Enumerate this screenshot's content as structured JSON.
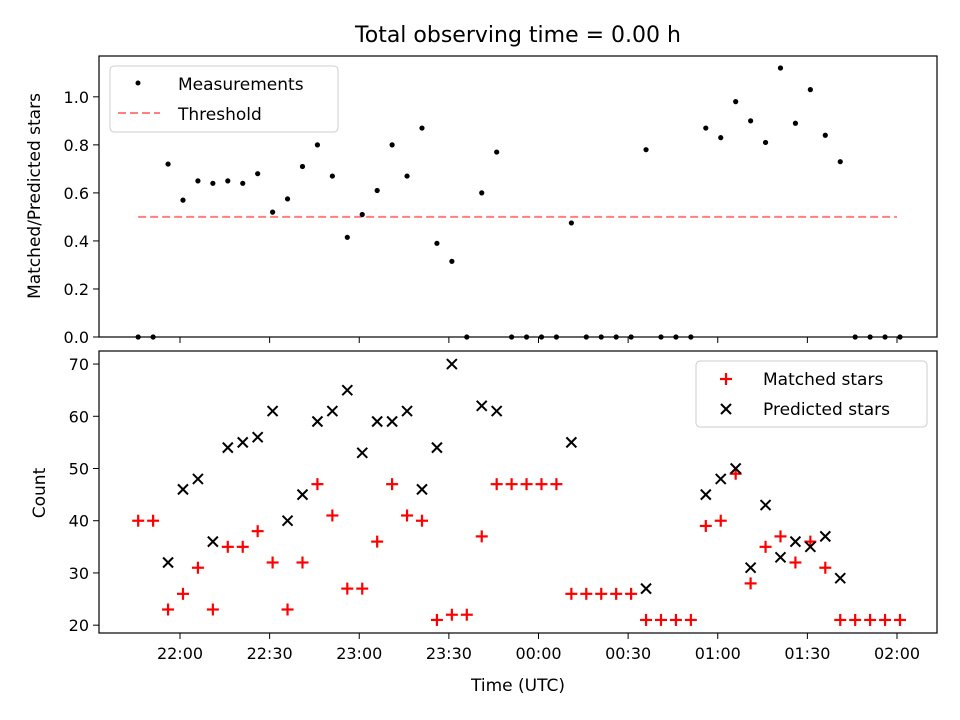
{
  "figure": {
    "title": "Total observing time = 0.00 h",
    "xlabel": "Time (UTC)",
    "x_ticks": [
      "22:00",
      "22:30",
      "23:00",
      "23:30",
      "00:00",
      "00:30",
      "01:00",
      "01:30",
      "02:00"
    ],
    "x_range_minutes": [
      -25,
      43
    ],
    "colors": {
      "measurements": "#000000",
      "threshold": "#ff7f7f",
      "matched": "#ff0000",
      "predicted": "#000000"
    }
  },
  "chart_data": [
    {
      "type": "scatter",
      "ylabel": "Matched/Predicted stars",
      "ylim": [
        0,
        1.17
      ],
      "y_ticks": [
        "0.0",
        "0.2",
        "0.4",
        "0.6",
        "0.8",
        "1.0"
      ],
      "legend_position": "top-left",
      "x": [
        "21:46",
        "21:51",
        "21:56",
        "22:01",
        "22:06",
        "22:11",
        "22:16",
        "22:21",
        "22:26",
        "22:31",
        "22:36",
        "22:41",
        "22:46",
        "22:51",
        "22:56",
        "23:01",
        "23:06",
        "23:11",
        "23:16",
        "23:21",
        "23:26",
        "23:31",
        "23:36",
        "23:41",
        "23:46",
        "23:51",
        "23:56",
        "00:01",
        "00:06",
        "00:11",
        "00:16",
        "00:21",
        "00:26",
        "00:31",
        "00:36",
        "00:41",
        "00:46",
        "00:51",
        "00:56",
        "01:01",
        "01:06",
        "01:11",
        "01:16",
        "01:21",
        "01:26",
        "01:31",
        "01:36",
        "01:41",
        "01:46",
        "01:51",
        "01:56",
        "02:01"
      ],
      "series": [
        {
          "name": "Measurements",
          "values": [
            0,
            0,
            0.72,
            0.57,
            0.65,
            0.64,
            0.65,
            0.64,
            0.68,
            0.52,
            0.575,
            0.71,
            0.8,
            0.67,
            0.415,
            0.51,
            0.61,
            0.8,
            0.67,
            0.87,
            0.39,
            0.315,
            0,
            0.6,
            0.77,
            0,
            0,
            0,
            0,
            0.475,
            0,
            0,
            0,
            0,
            0.78,
            0,
            0,
            0,
            0.87,
            0.83,
            0.98,
            0.9,
            0.81,
            1.12,
            0.89,
            1.03,
            0.84,
            0.73,
            0,
            0,
            0,
            0
          ]
        },
        {
          "name": "Threshold",
          "type": "line",
          "x": [
            "21:46",
            "02:00"
          ],
          "values": [
            0.5,
            0.5
          ]
        }
      ]
    },
    {
      "type": "scatter",
      "ylabel": "Count",
      "ylim": [
        18.5,
        72.5
      ],
      "y_ticks": [
        "20",
        "30",
        "40",
        "50",
        "60",
        "70"
      ],
      "legend_position": "top-right",
      "x": [
        "21:46",
        "21:51",
        "21:56",
        "22:01",
        "22:06",
        "22:11",
        "22:16",
        "22:21",
        "22:26",
        "22:31",
        "22:36",
        "22:41",
        "22:46",
        "22:51",
        "22:56",
        "23:01",
        "23:06",
        "23:11",
        "23:16",
        "23:21",
        "23:26",
        "23:31",
        "23:36",
        "23:41",
        "23:46",
        "23:51",
        "23:56",
        "00:01",
        "00:06",
        "00:11",
        "00:16",
        "00:21",
        "00:26",
        "00:31",
        "00:36",
        "00:41",
        "00:46",
        "00:51",
        "00:56",
        "01:01",
        "01:06",
        "01:11",
        "01:16",
        "01:21",
        "01:26",
        "01:31",
        "01:36",
        "01:41",
        "01:46",
        "01:51",
        "01:56",
        "02:01"
      ],
      "series": [
        {
          "name": "Matched stars",
          "values": [
            40,
            40,
            23,
            26,
            31,
            23,
            35,
            35,
            38,
            32,
            23,
            32,
            47,
            41,
            27,
            27,
            36,
            47,
            41,
            40,
            21,
            22,
            22,
            37,
            47,
            47,
            47,
            47,
            47,
            26,
            26,
            26,
            26,
            26,
            21,
            21,
            21,
            21,
            39,
            40,
            49,
            28,
            35,
            37,
            32,
            36,
            31,
            21,
            21,
            21,
            21,
            21
          ]
        },
        {
          "name": "Predicted stars",
          "values": [
            null,
            null,
            32,
            46,
            48,
            36,
            54,
            55,
            56,
            61,
            40,
            45,
            59,
            61,
            65,
            53,
            59,
            59,
            61,
            46,
            54,
            70,
            null,
            62,
            61,
            null,
            null,
            null,
            null,
            55,
            null,
            null,
            null,
            null,
            27,
            null,
            null,
            null,
            45,
            48,
            50,
            31,
            43,
            33,
            36,
            35,
            37,
            29,
            null,
            null,
            null,
            null
          ]
        }
      ]
    }
  ]
}
